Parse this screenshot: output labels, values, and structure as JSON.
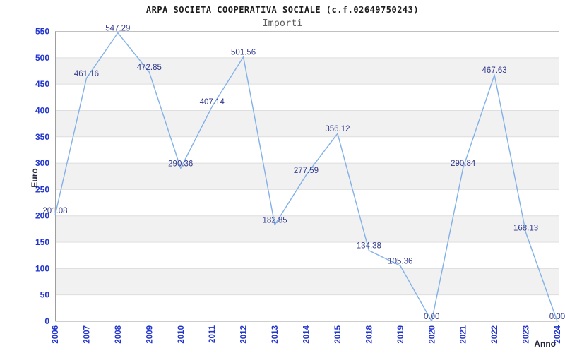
{
  "chart_data": {
    "type": "line",
    "title": "ARPA SOCIETA COOPERATIVA SOCIALE (c.f.02649750243)",
    "subtitle": "Importi",
    "xlabel": "Anno",
    "ylabel": "Euro",
    "categories": [
      "2006",
      "2007",
      "2008",
      "2009",
      "2010",
      "2011",
      "2012",
      "2013",
      "2014",
      "2015",
      "2018",
      "2019",
      "2020",
      "2021",
      "2022",
      "2023",
      "2024"
    ],
    "series": [
      {
        "name": "Importi",
        "values": [
          201.08,
          461.16,
          547.29,
          472.85,
          290.36,
          407.14,
          501.56,
          182.85,
          277.59,
          356.12,
          134.38,
          105.36,
          0.0,
          290.84,
          467.63,
          168.13,
          0.0
        ]
      }
    ],
    "value_labels": [
      "201.08",
      "461.16",
      "547.29",
      "472.85",
      "290.36",
      "407.14",
      "501.56",
      "182.85",
      "277.59",
      "356.12",
      "134.38",
      "105.36",
      "0.00",
      "290.84",
      "467.63",
      "168.13",
      "0.00"
    ],
    "ylim": [
      0,
      550
    ],
    "ytick_step": 50,
    "legend": "none",
    "grid": "alternating horizontal bands with gridline every 50",
    "colors": {
      "line": "#82b1e8",
      "data_label": "#333a8c",
      "tick_label": "#2235cd",
      "axis_title": "#22223a",
      "band_gray": "#f1f1f1",
      "band_white": "#ffffff",
      "gridline": "#dedede",
      "plot_border": "#c0c0c0",
      "axis_line": "#9e9e9e",
      "title": "#1c1c1c",
      "subtitle": "#5f5f5f",
      "background": "#ffffff"
    }
  }
}
